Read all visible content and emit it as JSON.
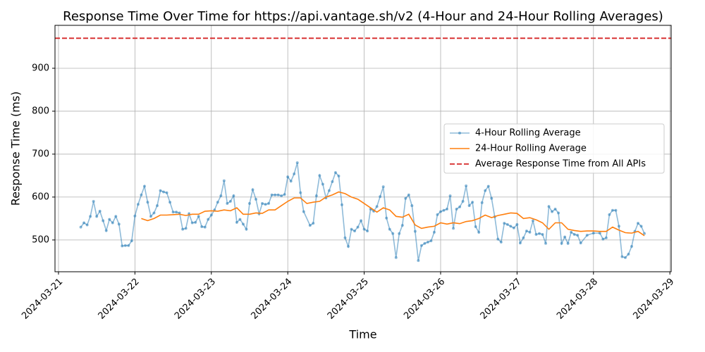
{
  "chart_data": {
    "type": "line",
    "title": "Response Time Over Time for https://api.vantage.sh/v2 (4-Hour and 24-Hour Rolling Averages)",
    "xlabel": "Time",
    "ylabel": "Response Time (ms)",
    "xlim": [
      "2024-03-20 22:54",
      "2024-03-29 00:24"
    ],
    "xticks": [
      "2024-03-21",
      "2024-03-22",
      "2024-03-23",
      "2024-03-24",
      "2024-03-25",
      "2024-03-26",
      "2024-03-27",
      "2024-03-28",
      "2024-03-29"
    ],
    "ylim": [
      426,
      1000
    ],
    "yticks": [
      500,
      600,
      700,
      800,
      900
    ],
    "grid": true,
    "legend": "center right",
    "series": [
      {
        "name": "4-Hour Rolling Average",
        "color": "#1f77b4",
        "alpha": 0.5,
        "marker": true,
        "x": [
          "2024-03-21 07:00",
          "2024-03-21 08:00",
          "2024-03-21 09:00",
          "2024-03-21 10:00",
          "2024-03-21 11:00",
          "2024-03-21 12:00",
          "2024-03-21 13:00",
          "2024-03-21 14:00",
          "2024-03-21 15:00",
          "2024-03-21 16:00",
          "2024-03-21 17:00",
          "2024-03-21 18:00",
          "2024-03-21 19:00",
          "2024-03-21 20:00",
          "2024-03-21 21:00",
          "2024-03-21 22:00",
          "2024-03-21 23:00",
          "2024-03-22 00:00",
          "2024-03-22 01:00",
          "2024-03-22 02:00",
          "2024-03-22 03:00",
          "2024-03-22 04:00",
          "2024-03-22 05:00",
          "2024-03-22 06:00",
          "2024-03-22 07:00",
          "2024-03-22 08:00",
          "2024-03-22 09:00",
          "2024-03-22 10:00",
          "2024-03-22 11:00",
          "2024-03-22 12:00",
          "2024-03-22 13:00",
          "2024-03-22 14:00",
          "2024-03-22 15:00",
          "2024-03-22 16:00",
          "2024-03-22 17:00",
          "2024-03-22 18:00",
          "2024-03-22 19:00",
          "2024-03-22 20:00",
          "2024-03-22 21:00",
          "2024-03-22 22:00",
          "2024-03-22 23:00",
          "2024-03-23 00:00",
          "2024-03-23 01:00",
          "2024-03-23 02:00",
          "2024-03-23 03:00",
          "2024-03-23 04:00",
          "2024-03-23 05:00",
          "2024-03-23 06:00",
          "2024-03-23 07:00",
          "2024-03-23 08:00",
          "2024-03-23 09:00",
          "2024-03-23 10:00",
          "2024-03-23 11:00",
          "2024-03-23 12:00",
          "2024-03-23 13:00",
          "2024-03-23 14:00",
          "2024-03-23 15:00",
          "2024-03-23 16:00",
          "2024-03-23 17:00",
          "2024-03-23 18:00",
          "2024-03-23 19:00",
          "2024-03-23 20:00",
          "2024-03-23 21:00",
          "2024-03-23 22:00",
          "2024-03-23 23:00",
          "2024-03-24 00:00",
          "2024-03-24 01:00",
          "2024-03-24 02:00",
          "2024-03-24 03:00",
          "2024-03-24 04:00",
          "2024-03-24 05:00",
          "2024-03-24 07:00",
          "2024-03-24 08:00",
          "2024-03-24 09:00",
          "2024-03-24 10:00",
          "2024-03-24 11:00",
          "2024-03-24 12:00",
          "2024-03-24 13:00",
          "2024-03-24 14:00",
          "2024-03-24 15:00",
          "2024-03-24 16:00",
          "2024-03-24 17:00",
          "2024-03-24 18:00",
          "2024-03-24 19:00",
          "2024-03-24 20:00",
          "2024-03-24 21:00",
          "2024-03-24 22:00",
          "2024-03-24 23:00",
          "2024-03-25 00:00",
          "2024-03-25 01:00",
          "2024-03-25 02:00",
          "2024-03-25 03:00",
          "2024-03-25 04:00",
          "2024-03-25 05:00",
          "2024-03-25 06:00",
          "2024-03-25 07:00",
          "2024-03-25 08:00",
          "2024-03-25 09:00",
          "2024-03-25 10:00",
          "2024-03-25 11:00",
          "2024-03-25 12:00",
          "2024-03-25 13:00",
          "2024-03-25 14:00",
          "2024-03-25 15:00",
          "2024-03-25 16:00",
          "2024-03-25 17:00",
          "2024-03-25 18:00",
          "2024-03-25 19:00",
          "2024-03-25 20:00",
          "2024-03-25 21:00",
          "2024-03-25 22:00",
          "2024-03-25 23:00",
          "2024-03-26 00:00",
          "2024-03-26 01:00",
          "2024-03-26 02:00",
          "2024-03-26 03:00",
          "2024-03-26 04:00",
          "2024-03-26 05:00",
          "2024-03-26 06:00",
          "2024-03-26 07:00",
          "2024-03-26 08:00",
          "2024-03-26 09:00",
          "2024-03-26 10:00",
          "2024-03-26 11:00",
          "2024-03-26 12:00",
          "2024-03-26 13:00",
          "2024-03-26 14:00",
          "2024-03-26 15:00",
          "2024-03-26 16:00",
          "2024-03-26 17:00",
          "2024-03-26 18:00",
          "2024-03-26 19:00",
          "2024-03-26 20:00",
          "2024-03-26 21:00",
          "2024-03-26 22:00",
          "2024-03-26 23:00",
          "2024-03-27 00:00",
          "2024-03-27 01:00",
          "2024-03-27 02:00",
          "2024-03-27 03:00",
          "2024-03-27 04:00",
          "2024-03-27 05:00",
          "2024-03-27 06:00",
          "2024-03-27 07:00",
          "2024-03-27 08:00",
          "2024-03-27 09:00",
          "2024-03-27 10:00",
          "2024-03-27 11:00",
          "2024-03-27 12:00",
          "2024-03-27 13:00",
          "2024-03-27 14:00",
          "2024-03-27 15:00",
          "2024-03-27 16:00",
          "2024-03-27 17:00",
          "2024-03-27 18:00",
          "2024-03-27 19:00",
          "2024-03-27 20:00",
          "2024-03-27 22:00",
          "2024-03-28 00:00",
          "2024-03-28 02:00",
          "2024-03-28 03:00",
          "2024-03-28 04:00",
          "2024-03-28 05:00",
          "2024-03-28 06:00",
          "2024-03-28 07:00",
          "2024-03-28 08:00",
          "2024-03-28 09:00",
          "2024-03-28 10:00",
          "2024-03-28 11:00",
          "2024-03-28 12:00",
          "2024-03-28 13:00",
          "2024-03-28 14:00",
          "2024-03-28 15:00",
          "2024-03-28 16:00"
        ],
        "values": [
          530,
          540,
          535,
          555,
          590,
          555,
          567,
          545,
          522,
          548,
          540,
          555,
          537,
          486,
          487,
          487,
          498,
          556,
          583,
          605,
          625,
          588,
          555,
          563,
          580,
          615,
          612,
          610,
          588,
          565,
          565,
          563,
          525,
          527,
          561,
          540,
          541,
          555,
          531,
          530,
          548,
          558,
          570,
          588,
          603,
          638,
          585,
          590,
          603,
          541,
          548,
          537,
          525,
          585,
          617,
          595,
          561,
          585,
          583,
          585,
          605,
          605,
          605,
          603,
          606,
          647,
          637,
          654,
          680,
          610,
          566,
          534,
          539,
          603,
          650,
          630,
          598,
          615,
          636,
          657,
          649,
          582,
          505,
          485,
          525,
          521,
          530,
          545,
          525,
          521,
          572,
          567,
          578,
          601,
          624,
          551,
          525,
          515,
          459,
          515,
          534,
          597,
          605,
          580,
          520,
          452,
          487,
          492,
          495,
          498,
          518,
          559,
          566,
          569,
          572,
          603,
          527,
          572,
          577,
          590,
          626,
          580,
          588,
          531,
          518,
          587,
          615,
          625,
          597,
          554,
          502,
          495,
          539,
          536,
          532,
          528,
          536,
          493,
          505,
          521,
          518,
          545,
          513,
          515,
          513,
          492,
          578,
          566,
          572,
          563,
          492,
          507,
          492,
          518,
          513,
          511,
          493,
          511,
          516,
          516,
          502,
          505,
          559,
          569,
          569,
          532,
          461,
          459,
          467,
          485,
          520,
          539,
          532,
          515
        ]
      },
      {
        "name": "24-Hour Rolling Average",
        "color": "#ff7f0e",
        "x": [
          "2024-03-22 02:00",
          "2024-03-22 04:00",
          "2024-03-22 06:00",
          "2024-03-22 08:00",
          "2024-03-22 10:00",
          "2024-03-22 12:00",
          "2024-03-22 14:00",
          "2024-03-22 16:00",
          "2024-03-22 18:00",
          "2024-03-22 20:00",
          "2024-03-22 22:00",
          "2024-03-23 00:00",
          "2024-03-23 02:00",
          "2024-03-23 04:00",
          "2024-03-23 06:00",
          "2024-03-23 08:00",
          "2024-03-23 10:00",
          "2024-03-23 12:00",
          "2024-03-23 14:00",
          "2024-03-23 16:00",
          "2024-03-23 18:00",
          "2024-03-23 20:00",
          "2024-03-23 22:00",
          "2024-03-24 00:00",
          "2024-03-24 02:00",
          "2024-03-24 04:00",
          "2024-03-24 06:00",
          "2024-03-24 08:00",
          "2024-03-24 10:00",
          "2024-03-24 12:00",
          "2024-03-24 14:00",
          "2024-03-24 16:00",
          "2024-03-24 18:00",
          "2024-03-24 20:00",
          "2024-03-24 22:00",
          "2024-03-25 00:00",
          "2024-03-25 02:00",
          "2024-03-25 04:00",
          "2024-03-25 06:00",
          "2024-03-25 08:00",
          "2024-03-25 10:00",
          "2024-03-25 12:00",
          "2024-03-25 14:00",
          "2024-03-25 16:00",
          "2024-03-25 18:00",
          "2024-03-25 20:00",
          "2024-03-25 22:00",
          "2024-03-26 00:00",
          "2024-03-26 02:00",
          "2024-03-26 04:00",
          "2024-03-26 06:00",
          "2024-03-26 08:00",
          "2024-03-26 10:00",
          "2024-03-26 12:00",
          "2024-03-26 14:00",
          "2024-03-26 16:00",
          "2024-03-26 18:00",
          "2024-03-26 20:00",
          "2024-03-26 22:00",
          "2024-03-27 00:00",
          "2024-03-27 02:00",
          "2024-03-27 04:00",
          "2024-03-27 06:00",
          "2024-03-27 08:00",
          "2024-03-27 10:00",
          "2024-03-27 12:00",
          "2024-03-27 14:00",
          "2024-03-27 16:00",
          "2024-03-27 18:00",
          "2024-03-27 20:00",
          "2024-03-27 22:00",
          "2024-03-28 00:00",
          "2024-03-28 02:00",
          "2024-03-28 04:00",
          "2024-03-28 06:00",
          "2024-03-28 08:00",
          "2024-03-28 10:00",
          "2024-03-28 12:00",
          "2024-03-28 14:00",
          "2024-03-28 16:00"
        ],
        "values": [
          550,
          545,
          550,
          558,
          558,
          559,
          560,
          557,
          560,
          560,
          567,
          568,
          567,
          570,
          568,
          575,
          560,
          560,
          563,
          562,
          570,
          570,
          580,
          590,
          598,
          598,
          585,
          588,
          590,
          600,
          605,
          612,
          608,
          600,
          595,
          585,
          575,
          565,
          575,
          570,
          555,
          553,
          560,
          535,
          527,
          530,
          532,
          540,
          537,
          540,
          538,
          543,
          545,
          550,
          558,
          552,
          557,
          560,
          563,
          562,
          550,
          552,
          547,
          540,
          525,
          540,
          540,
          525,
          522,
          520,
          521,
          521,
          520,
          520,
          530,
          523,
          517,
          516,
          520,
          510
        ]
      }
    ],
    "reference_line": {
      "name": "Average Response Time from All APIs",
      "value": 970,
      "color": "#d62728",
      "style": "dashed"
    }
  }
}
